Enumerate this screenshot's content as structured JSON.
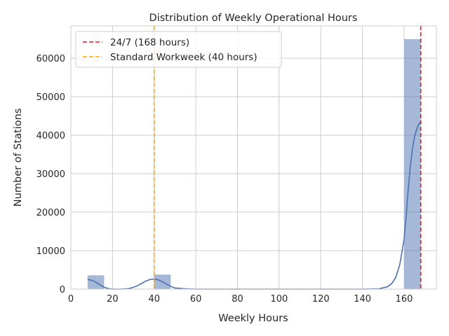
{
  "chart_data": {
    "type": "bar",
    "title": "Distribution of Weekly Operational Hours",
    "xlabel": "Weekly Hours",
    "ylabel": "Number of Stations",
    "xlim": [
      0,
      175.5
    ],
    "ylim": [
      0,
      68400
    ],
    "xticks": [
      "0",
      "20",
      "40",
      "60",
      "80",
      "100",
      "120",
      "140",
      "160"
    ],
    "xtick_values": [
      0,
      20,
      40,
      60,
      80,
      100,
      120,
      140,
      160
    ],
    "yticks": [
      "0",
      "10000",
      "20000",
      "30000",
      "40000",
      "50000",
      "60000"
    ],
    "ytick_values": [
      0,
      10000,
      20000,
      30000,
      40000,
      50000,
      60000
    ],
    "grid": true,
    "legend_position": "top-left",
    "histogram": {
      "bins": [
        {
          "start": 8,
          "end": 16,
          "count": 3600
        },
        {
          "start": 40,
          "end": 48,
          "count": 3800
        },
        {
          "start": 160,
          "end": 168,
          "count": 65000
        }
      ],
      "color": "#4C72B0"
    },
    "kde": {
      "color": "#4C72B0",
      "x": [
        8,
        10,
        12,
        14,
        16,
        18,
        20,
        22,
        24,
        26,
        28,
        30,
        32,
        34,
        36,
        38,
        40,
        42,
        44,
        46,
        48,
        50,
        55,
        60,
        80,
        100,
        120,
        140,
        148,
        152,
        154,
        156,
        158,
        160,
        161,
        162,
        163,
        164,
        165,
        166,
        167,
        168
      ],
      "y": [
        2500,
        2300,
        1800,
        1100,
        500,
        150,
        0,
        0,
        0,
        50,
        150,
        450,
        900,
        1500,
        2100,
        2500,
        2600,
        2400,
        1900,
        1300,
        700,
        300,
        100,
        0,
        0,
        0,
        0,
        0,
        100,
        600,
        1400,
        3000,
        6500,
        13000,
        19000,
        26000,
        32000,
        36500,
        39500,
        41500,
        42800,
        43500
      ]
    },
    "reference_lines": [
      {
        "x": 168,
        "label": "24/7 (168 hours)",
        "color": "#e41a1c"
      },
      {
        "x": 40,
        "label": "Standard Workweek (40 hours)",
        "color": "#ffa500"
      }
    ]
  }
}
